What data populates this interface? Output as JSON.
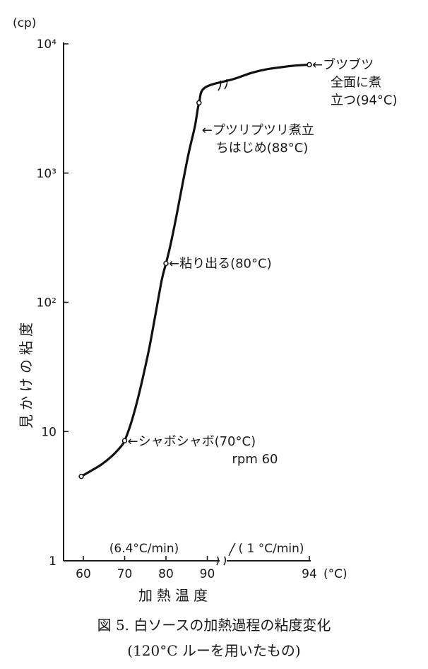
{
  "chart_data": {
    "type": "line",
    "title": "図 5. 白ソースの加熱過程の粘度変化",
    "subtitle": "(120°C ルーを用いたもの)",
    "xlabel": "加熱温度",
    "ylabel": "見かけの粘度",
    "y_unit": "(cp)",
    "x_unit": "(°C)",
    "y_scale": "log",
    "ylim": [
      1,
      10000
    ],
    "y_ticks": [
      {
        "value": 1,
        "label": "1"
      },
      {
        "value": 10,
        "label": "10"
      },
      {
        "value": 100,
        "label": "10²"
      },
      {
        "value": 1000,
        "label": "10³"
      },
      {
        "value": 10000,
        "label": "10⁴"
      }
    ],
    "x_ticks": [
      {
        "value": 60,
        "label": "60"
      },
      {
        "value": 70,
        "label": "70"
      },
      {
        "value": 80,
        "label": "80"
      },
      {
        "value": 90,
        "label": "90"
      },
      {
        "value": 94,
        "label": "94"
      }
    ],
    "rate_labels": [
      "(6.4°C/min)",
      "( 1 °C/min)"
    ],
    "break_at": 90,
    "series": [
      {
        "x": [
          59.5,
          62,
          64.5,
          67,
          69,
          70,
          71.5,
          73,
          74.5,
          76,
          77.5,
          79,
          80,
          81,
          82.5,
          84,
          85.5,
          87,
          88,
          89.5,
          90.5,
          91.3,
          92,
          92.7,
          93.3,
          94
        ],
        "y": [
          4.5,
          5.0,
          5.6,
          6.5,
          7.6,
          8.5,
          11.5,
          17,
          27,
          45,
          82,
          150,
          200,
          270,
          460,
          820,
          1430,
          2300,
          3500,
          4600,
          5350,
          5950,
          6350,
          6600,
          6780,
          6900
        ]
      }
    ],
    "markers": [
      {
        "x": 59.5,
        "y": 4.5
      },
      {
        "x": 70,
        "y": 8.5
      },
      {
        "x": 80,
        "y": 200
      },
      {
        "x": 88,
        "y": 3500
      },
      {
        "x": 94,
        "y": 6900
      }
    ],
    "annotations": [
      {
        "x": 70,
        "y": 8.5,
        "lines": [
          "←シャボシャボ(70°C)",
          "rpm 60"
        ]
      },
      {
        "x": 80,
        "y": 200,
        "lines": [
          "←粘り出る(80°C)"
        ]
      },
      {
        "x": 88,
        "y": 2200,
        "lines": [
          "←プツリプツリ煮立",
          "ちはじめ(88°C)"
        ]
      },
      {
        "x": 94,
        "y": 6900,
        "lines": [
          "←ブツブツ",
          "全面に煮",
          "立つ(94°C)"
        ]
      }
    ]
  }
}
